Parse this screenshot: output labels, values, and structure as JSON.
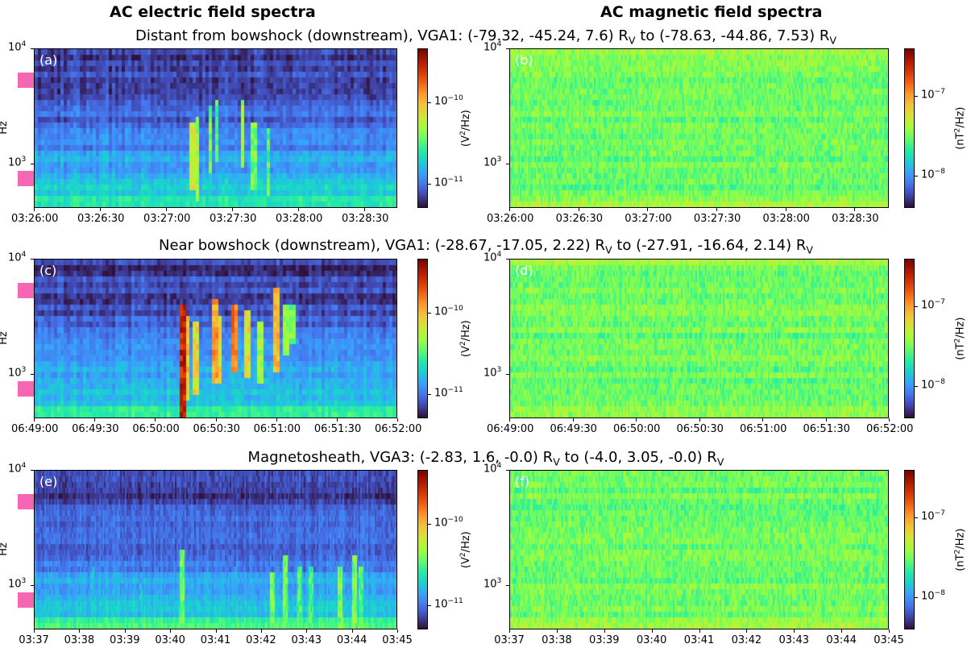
{
  "figure": {
    "left_title": "AC electric field spectra",
    "right_title": "AC magnetic field spectra"
  },
  "colors": {
    "highlight": "#f567b3",
    "colormap": [
      "#30123b",
      "#4145ab",
      "#4675ed",
      "#39a2fc",
      "#1bcfd4",
      "#24eca6",
      "#61fc6c",
      "#a4fc3b",
      "#d1e834",
      "#f3c63a",
      "#fe9b2d",
      "#f36315",
      "#d93806",
      "#b11901",
      "#7a0402"
    ]
  },
  "rows": [
    {
      "title_main": "Distant from bowshock (downstream), VGA1: (-79.32, -45.24, 7.6) R",
      "title_sub1": "V",
      "title_mid": " to (-78.63, -44.86, 7.53) R",
      "title_sub2": "V",
      "electric": {
        "label": "(a)",
        "ylabel": "Hz",
        "yticks": [
          "10",
          "10"
        ],
        "yticks_exp": [
          "4",
          "3"
        ],
        "xticks": [
          "03:26:00",
          "03:26:30",
          "03:27:00",
          "03:27:30",
          "03:28:00",
          "03:28:30"
        ],
        "cbar_label": "(V",
        "cbar_label_exp": "2",
        "cbar_label_end": "/Hz)",
        "cbar_ticks": [
          "10",
          "10"
        ],
        "cbar_ticks_exp": [
          "−10",
          "−11"
        ]
      },
      "magnetic": {
        "label": "(b)",
        "yticks": [
          "10",
          "10"
        ],
        "yticks_exp": [
          "4",
          "3"
        ],
        "xticks": [
          "03:26:00",
          "03:26:30",
          "03:27:00",
          "03:27:30",
          "03:28:00",
          "03:28:30"
        ],
        "cbar_label": "(nT",
        "cbar_label_exp": "2",
        "cbar_label_end": "/Hz)",
        "cbar_ticks": [
          "10",
          "10"
        ],
        "cbar_ticks_exp": [
          "−7",
          "−8"
        ]
      }
    },
    {
      "title_main": "Near bowshock (downstream), VGA1: (-28.67, -17.05, 2.22) R",
      "title_sub1": "V",
      "title_mid": " to (-27.91, -16.64, 2.14) R",
      "title_sub2": "V",
      "electric": {
        "label": "(c)",
        "ylabel": "Hz",
        "yticks": [
          "10",
          "10"
        ],
        "yticks_exp": [
          "4",
          "3"
        ],
        "xticks": [
          "06:49:00",
          "06:49:30",
          "06:50:00",
          "06:50:30",
          "06:51:00",
          "06:51:30",
          "06:52:00"
        ],
        "cbar_label": "(V",
        "cbar_label_exp": "2",
        "cbar_label_end": "/Hz)",
        "cbar_ticks": [
          "10",
          "10"
        ],
        "cbar_ticks_exp": [
          "−10",
          "−11"
        ]
      },
      "magnetic": {
        "label": "(d)",
        "yticks": [
          "10",
          "10"
        ],
        "yticks_exp": [
          "4",
          "3"
        ],
        "xticks": [
          "06:49:00",
          "06:49:30",
          "06:50:00",
          "06:50:30",
          "06:51:00",
          "06:51:30",
          "06:52:00"
        ],
        "cbar_label": "(nT",
        "cbar_label_exp": "2",
        "cbar_label_end": "/Hz)",
        "cbar_ticks": [
          "10",
          "10"
        ],
        "cbar_ticks_exp": [
          "−7",
          "−8"
        ]
      }
    },
    {
      "title_main": "Magnetosheath, VGA3: (-2.83, 1.6, -0.0) R",
      "title_sub1": "V",
      "title_mid": " to (-4.0, 3.05, -0.0) R",
      "title_sub2": "V",
      "electric": {
        "label": "(e)",
        "ylabel": "Hz",
        "yticks": [
          "10",
          "10"
        ],
        "yticks_exp": [
          "4",
          "3"
        ],
        "xticks": [
          "03:37",
          "03:38",
          "03:39",
          "03:40",
          "03:41",
          "03:42",
          "03:43",
          "03:44",
          "03:45"
        ],
        "cbar_label": "(V",
        "cbar_label_exp": "2",
        "cbar_label_end": "/Hz)",
        "cbar_ticks": [
          "10",
          "10"
        ],
        "cbar_ticks_exp": [
          "−10",
          "−11"
        ]
      },
      "magnetic": {
        "label": "(f)",
        "yticks": [
          "10",
          "10"
        ],
        "yticks_exp": [
          "4",
          "3"
        ],
        "xticks": [
          "03:37",
          "03:38",
          "03:39",
          "03:40",
          "03:41",
          "03:42",
          "03:43",
          "03:44",
          "03:45"
        ],
        "cbar_label": "(nT",
        "cbar_label_exp": "2",
        "cbar_label_end": "/Hz)",
        "cbar_ticks": [
          "10",
          "10"
        ],
        "cbar_ticks_exp": [
          "−7",
          "−8"
        ]
      }
    }
  ],
  "chart_data": [
    {
      "type": "heatmap",
      "panel": "(a)",
      "quantity": "AC electric field spectra",
      "xlabel": "",
      "ylabel": "Hz",
      "y_scale": "log",
      "x_range": [
        "03:26:00",
        "03:28:45"
      ],
      "ylim": [
        450,
        10000
      ],
      "colorbar": "(V^2/Hz)",
      "clim": [
        5e-12,
        4e-10
      ],
      "bursts_x": [
        "03:27:05",
        "03:27:10",
        "03:27:20",
        "03:27:35",
        "03:27:45"
      ]
    },
    {
      "type": "heatmap",
      "panel": "(b)",
      "quantity": "AC magnetic field spectra",
      "xlabel": "",
      "ylabel": "",
      "y_scale": "log",
      "x_range": [
        "03:26:00",
        "03:28:45"
      ],
      "ylim": [
        450,
        10000
      ],
      "colorbar": "(nT^2/Hz)",
      "clim": [
        4e-09,
        4e-07
      ]
    },
    {
      "type": "heatmap",
      "panel": "(c)",
      "quantity": "AC electric field spectra",
      "xlabel": "",
      "ylabel": "Hz",
      "y_scale": "log",
      "x_range": [
        "06:49:00",
        "06:52:00"
      ],
      "ylim": [
        450,
        10000
      ],
      "colorbar": "(V^2/Hz)",
      "clim": [
        5e-12,
        4e-10
      ],
      "bursts_x": [
        "06:50:10",
        "06:50:20",
        "06:50:30",
        "06:50:38",
        "06:50:50",
        "06:50:58"
      ]
    },
    {
      "type": "heatmap",
      "panel": "(d)",
      "quantity": "AC magnetic field spectra",
      "xlabel": "",
      "ylabel": "",
      "y_scale": "log",
      "x_range": [
        "06:49:00",
        "06:52:00"
      ],
      "ylim": [
        450,
        10000
      ],
      "colorbar": "(nT^2/Hz)",
      "clim": [
        4e-09,
        4e-07
      ]
    },
    {
      "type": "heatmap",
      "panel": "(e)",
      "quantity": "AC electric field spectra",
      "xlabel": "",
      "ylabel": "Hz",
      "y_scale": "log",
      "x_range": [
        "03:37",
        "03:45"
      ],
      "ylim": [
        450,
        10000
      ],
      "colorbar": "(V^2/Hz)",
      "clim": [
        5e-12,
        4e-10
      ],
      "bursts_x": [
        "03:40:15",
        "03:42:10",
        "03:42:30",
        "03:43:00",
        "03:43:50",
        "03:44:10"
      ]
    },
    {
      "type": "heatmap",
      "panel": "(f)",
      "quantity": "AC magnetic field spectra",
      "xlabel": "",
      "ylabel": "",
      "y_scale": "log",
      "x_range": [
        "03:37",
        "03:45"
      ],
      "ylim": [
        450,
        10000
      ],
      "colorbar": "(nT^2/Hz)",
      "clim": [
        4e-09,
        4e-07
      ]
    }
  ]
}
